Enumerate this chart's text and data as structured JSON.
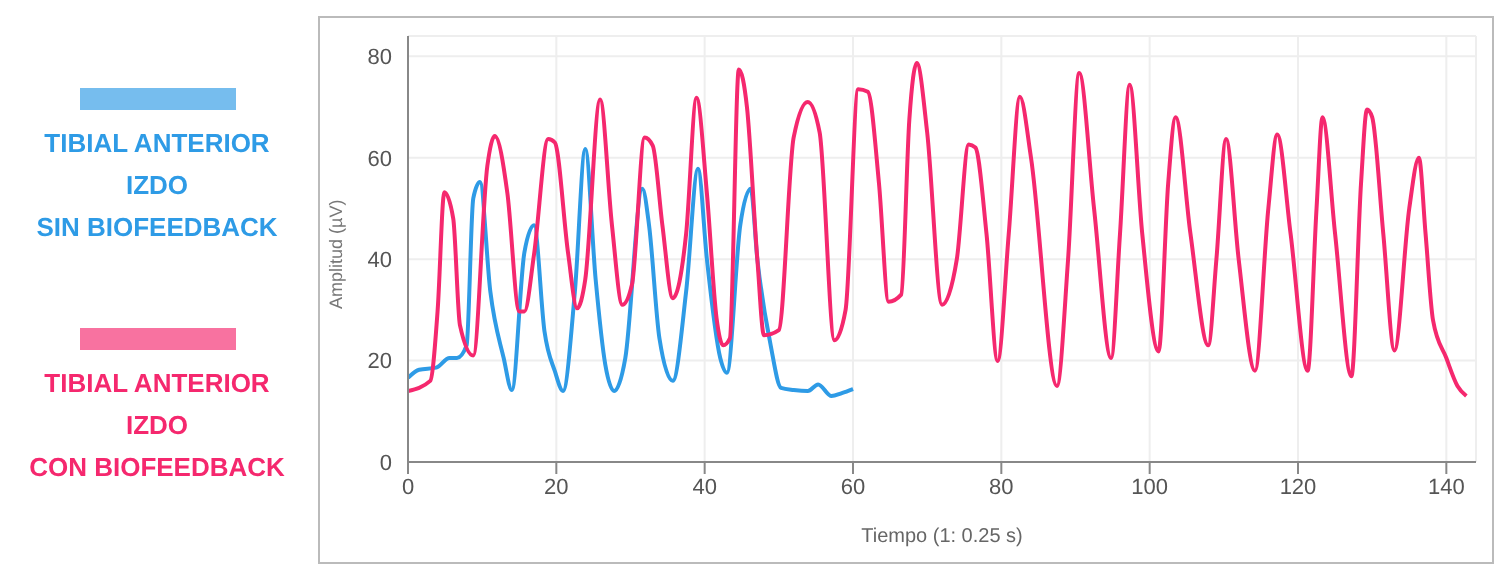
{
  "chart_data": {
    "type": "line",
    "xlabel": "Tiempo (1: 0.25 s)",
    "ylabel": "Amplitud (µV)",
    "xlim": [
      0,
      144
    ],
    "xticks": [
      0,
      20,
      40,
      60,
      80,
      100,
      120,
      140
    ],
    "ylim": [
      0,
      84
    ],
    "yticks": [
      0,
      20,
      40,
      60,
      80
    ],
    "grid": true,
    "legend": "left",
    "marker": "none",
    "line_style": "solid",
    "series": [
      {
        "name": "TIBIAL ANTERIOR\nIZDO\nSIN BIOFEEDBACK",
        "color": "#2e9be6",
        "x": [
          0,
          1.5,
          3.8,
          5.6,
          6.6,
          7.9,
          8.8,
          9.7,
          11.1,
          12.9,
          14,
          15.7,
          17,
          18.4,
          19.8,
          20.9,
          22.5,
          23.9,
          25.3,
          26.6,
          27.8,
          29.3,
          31.6,
          32.5,
          33.9,
          35.7,
          37.5,
          39.1,
          40.3,
          42.1,
          43,
          44.8,
          46.2,
          47.1,
          48.9,
          50.3,
          52,
          53.9,
          55.3,
          57.1,
          58.5,
          60
        ],
        "values": [
          16.6,
          18.2,
          18.6,
          20.5,
          20.5,
          23,
          52,
          55.2,
          33.6,
          20.5,
          14.2,
          41.4,
          46.7,
          25.8,
          17.9,
          14,
          33.6,
          61.7,
          36,
          19.2,
          14,
          20.5,
          53.9,
          46.7,
          24.4,
          16,
          33.6,
          57.8,
          40,
          20.5,
          17.6,
          46.7,
          53.9,
          40,
          23,
          14.6,
          14.2,
          14,
          15.3,
          13,
          13.6,
          14.4
        ]
      },
      {
        "name": "TIBIAL ANTERIOR\nIZDO\nCON BIOFEEDBACK",
        "color": "#f5286e",
        "x": [
          0,
          3,
          4,
          4.9,
          6.1,
          7,
          8.8,
          10.7,
          11.7,
          13.4,
          15,
          15.7,
          17,
          18.9,
          19.8,
          21.6,
          22.8,
          23.9,
          25.9,
          27.5,
          28.9,
          30.2,
          31.9,
          33,
          34.3,
          35.7,
          37.5,
          38.9,
          40.3,
          41.6,
          42.5,
          43.4,
          44.6,
          45.7,
          47.1,
          48,
          50,
          52,
          53.9,
          55.5,
          57.5,
          59,
          60.7,
          62,
          63.5,
          64.8,
          66.5,
          67.6,
          68.6,
          70,
          72,
          74,
          75.6,
          76.5,
          78,
          79.5,
          81,
          82.5,
          84,
          87.5,
          89,
          90.5,
          92.5,
          94.8,
          96,
          97.3,
          99,
          101.2,
          102.5,
          103.5,
          105.5,
          107.9,
          109,
          110.3,
          112,
          114.2,
          116,
          117.2,
          119,
          121.3,
          122.5,
          123.3,
          125,
          127.2,
          128.5,
          129.3,
          130,
          131.5,
          133,
          135,
          136.3,
          137.2,
          138.2,
          140,
          141.5,
          142.7
        ],
        "values": [
          14,
          16,
          30,
          53.2,
          48,
          27,
          21,
          58.4,
          64.3,
          53,
          29.7,
          29.7,
          41,
          63.7,
          63,
          41,
          30.3,
          36,
          71.5,
          46.7,
          31,
          35,
          64,
          62.4,
          46.7,
          32.3,
          45,
          71.8,
          53,
          28.4,
          23,
          24.4,
          77.4,
          70,
          40,
          25,
          26,
          64,
          71,
          65,
          24,
          30,
          73.5,
          73,
          55,
          31.6,
          33,
          67.6,
          78.7,
          65,
          31,
          40,
          62.6,
          62,
          45,
          19.9,
          45,
          72,
          60,
          15,
          40,
          76.7,
          50,
          20.5,
          45,
          74.4,
          45,
          21.8,
          55,
          68,
          45,
          23,
          40,
          63.7,
          40,
          18,
          50,
          64.6,
          45,
          18,
          50,
          68,
          45,
          16.9,
          55,
          69.5,
          68,
          45,
          22,
          50,
          60,
          45,
          28,
          20.5,
          15,
          13
        ]
      }
    ]
  }
}
